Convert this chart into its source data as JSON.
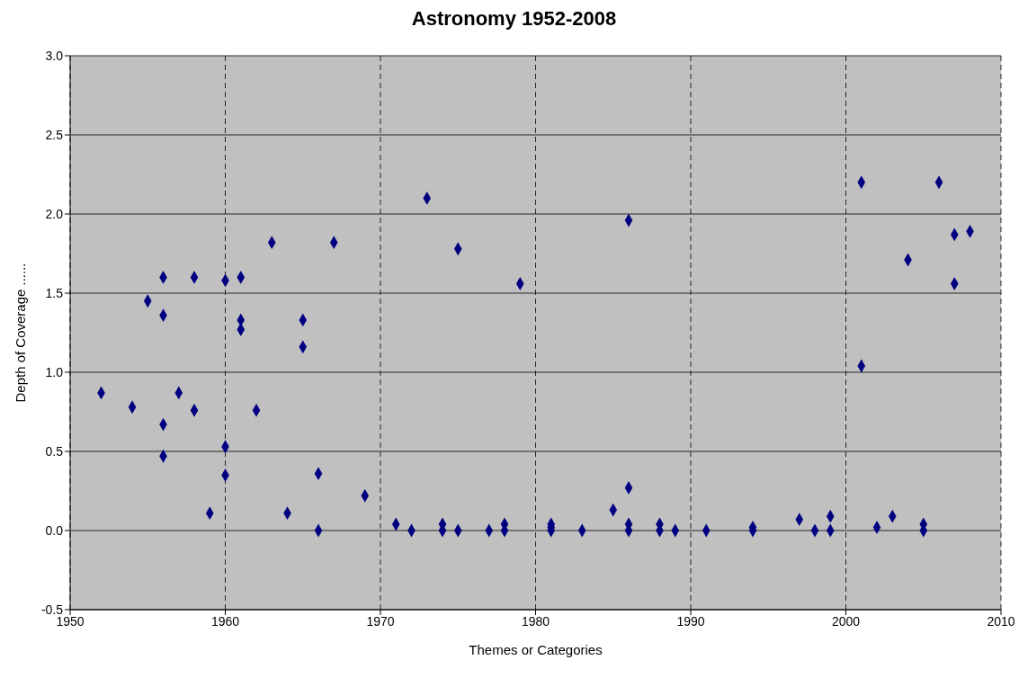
{
  "chart_data": {
    "type": "scatter",
    "title": "Astronomy 1952-2008",
    "xlabel": "Themes or Categories",
    "ylabel": "Depth of Coverage ......",
    "x": [
      1952,
      1954,
      1955,
      1956,
      1956,
      1956,
      1956,
      1957,
      1958,
      1958,
      1959,
      1960,
      1960,
      1960,
      1961,
      1961,
      1961,
      1962,
      1963,
      1964,
      1965,
      1965,
      1966,
      1966,
      1967,
      1969,
      1971,
      1972,
      1973,
      1974,
      1974,
      1975,
      1975,
      1977,
      1978,
      1978,
      1979,
      1981,
      1981,
      1981,
      1983,
      1985,
      1986,
      1986,
      1986,
      1986,
      1988,
      1988,
      1989,
      1991,
      1994,
      1994,
      1997,
      1998,
      1999,
      1999,
      2001,
      2001,
      2002,
      2003,
      2004,
      2005,
      2005,
      2006,
      2007,
      2007,
      2008
    ],
    "series": [
      {
        "color": "#000080",
        "values": [
          0.87,
          0.78,
          1.45,
          1.6,
          1.36,
          0.67,
          0.47,
          0.87,
          1.6,
          0.76,
          0.11,
          1.58,
          0.53,
          0.35,
          1.6,
          1.33,
          1.27,
          0.76,
          1.82,
          0.11,
          1.33,
          1.16,
          0.36,
          0,
          1.82,
          0.22,
          0.04,
          0,
          2.1,
          0.04,
          0,
          1.78,
          0,
          0,
          0.04,
          0,
          1.56,
          0.04,
          0.02,
          0,
          0,
          0.13,
          1.96,
          0.27,
          0.04,
          0,
          0.04,
          0,
          0,
          0,
          0.02,
          0,
          0.07,
          0,
          0.09,
          0,
          2.2,
          1.04,
          0.02,
          0.09,
          1.71,
          0.04,
          0,
          2.2,
          1.87,
          1.56,
          1.89
        ]
      }
    ],
    "xlim": [
      1950,
      2010
    ],
    "xticks": [
      1950,
      1960,
      1970,
      1980,
      1990,
      2000,
      2010
    ],
    "ylim": [
      -0.5,
      3
    ],
    "yticks": [
      {
        "value": -0.5,
        "label": "-0.5"
      },
      {
        "value": 0,
        "label": "0.0"
      },
      {
        "value": 0.5,
        "label": "0.5"
      },
      {
        "value": 1,
        "label": "1.0"
      },
      {
        "value": 1.5,
        "label": "1.5"
      },
      {
        "value": 2,
        "label": "2.0"
      },
      {
        "value": 2.5,
        "label": "2.5"
      },
      {
        "value": 3,
        "label": "3.0"
      }
    ],
    "grid": true,
    "marker": "diamond"
  }
}
